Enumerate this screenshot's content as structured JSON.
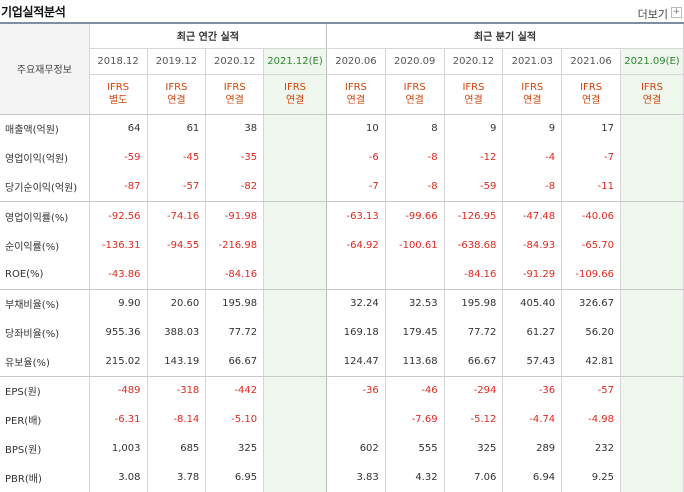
{
  "header": {
    "title": "기업실적분석",
    "more": "더보기"
  },
  "table": {
    "row_header": "주요재무정보",
    "annual_title": "최근 연간 실적",
    "quarter_title": "최근 분기 실적",
    "annual_periods": [
      "2018.12",
      "2019.12",
      "2020.12",
      "2021.12(E)"
    ],
    "quarter_periods": [
      "2020.06",
      "2020.09",
      "2020.12",
      "2021.03",
      "2021.06",
      "2021.09(E)"
    ],
    "annual_standards": [
      [
        "IFRS",
        "별도"
      ],
      [
        "IFRS",
        "연결"
      ],
      [
        "IFRS",
        "연결"
      ],
      [
        "IFRS",
        "연결"
      ]
    ],
    "quarter_standards": [
      [
        "IFRS",
        "연결"
      ],
      [
        "IFRS",
        "연결"
      ],
      [
        "IFRS",
        "연결"
      ],
      [
        "IFRS",
        "연결"
      ],
      [
        "IFRS",
        "연결"
      ],
      [
        "IFRS",
        "연결"
      ]
    ],
    "rows": [
      {
        "label": "매출액(억원)",
        "annual": [
          "64",
          "61",
          "38",
          ""
        ],
        "quarter": [
          "10",
          "8",
          "9",
          "9",
          "17",
          ""
        ]
      },
      {
        "label": "영업이익(억원)",
        "annual": [
          "-59",
          "-45",
          "-35",
          ""
        ],
        "quarter": [
          "-6",
          "-8",
          "-12",
          "-4",
          "-7",
          ""
        ]
      },
      {
        "label": "당기순이익(억원)",
        "annual": [
          "-87",
          "-57",
          "-82",
          ""
        ],
        "quarter": [
          "-7",
          "-8",
          "-59",
          "-8",
          "-11",
          ""
        ]
      },
      {
        "label": "영업이익률(%)",
        "annual": [
          "-92.56",
          "-74.16",
          "-91.98",
          ""
        ],
        "quarter": [
          "-63.13",
          "-99.66",
          "-126.95",
          "-47.48",
          "-40.06",
          ""
        ]
      },
      {
        "label": "순이익률(%)",
        "annual": [
          "-136.31",
          "-94.55",
          "-216.98",
          ""
        ],
        "quarter": [
          "-64.92",
          "-100.61",
          "-638.68",
          "-84.93",
          "-65.70",
          ""
        ]
      },
      {
        "label": "ROE(%)",
        "annual": [
          "-43.86",
          "",
          "-84.16",
          ""
        ],
        "quarter": [
          "",
          "",
          "-84.16",
          "-91.29",
          "-109.66",
          ""
        ]
      },
      {
        "label": "부채비율(%)",
        "annual": [
          "9.90",
          "20.60",
          "195.98",
          ""
        ],
        "quarter": [
          "32.24",
          "32.53",
          "195.98",
          "405.40",
          "326.67",
          ""
        ]
      },
      {
        "label": "당좌비율(%)",
        "annual": [
          "955.36",
          "388.03",
          "77.72",
          ""
        ],
        "quarter": [
          "169.18",
          "179.45",
          "77.72",
          "61.27",
          "56.20",
          ""
        ]
      },
      {
        "label": "유보율(%)",
        "annual": [
          "215.02",
          "143.19",
          "66.67",
          ""
        ],
        "quarter": [
          "124.47",
          "113.68",
          "66.67",
          "57.43",
          "42.81",
          ""
        ]
      },
      {
        "label": "EPS(원)",
        "annual": [
          "-489",
          "-318",
          "-442",
          ""
        ],
        "quarter": [
          "-36",
          "-46",
          "-294",
          "-36",
          "-57",
          ""
        ]
      },
      {
        "label": "PER(배)",
        "annual": [
          "-6.31",
          "-8.14",
          "-5.10",
          ""
        ],
        "quarter": [
          "",
          "-7.69",
          "-5.12",
          "-4.74",
          "-4.98",
          ""
        ]
      },
      {
        "label": "BPS(원)",
        "annual": [
          "1,003",
          "685",
          "325",
          ""
        ],
        "quarter": [
          "602",
          "555",
          "325",
          "289",
          "232",
          ""
        ]
      },
      {
        "label": "PBR(배)",
        "annual": [
          "3.08",
          "3.78",
          "6.95",
          ""
        ],
        "quarter": [
          "3.83",
          "4.32",
          "7.06",
          "6.94",
          "9.25",
          ""
        ]
      }
    ]
  }
}
